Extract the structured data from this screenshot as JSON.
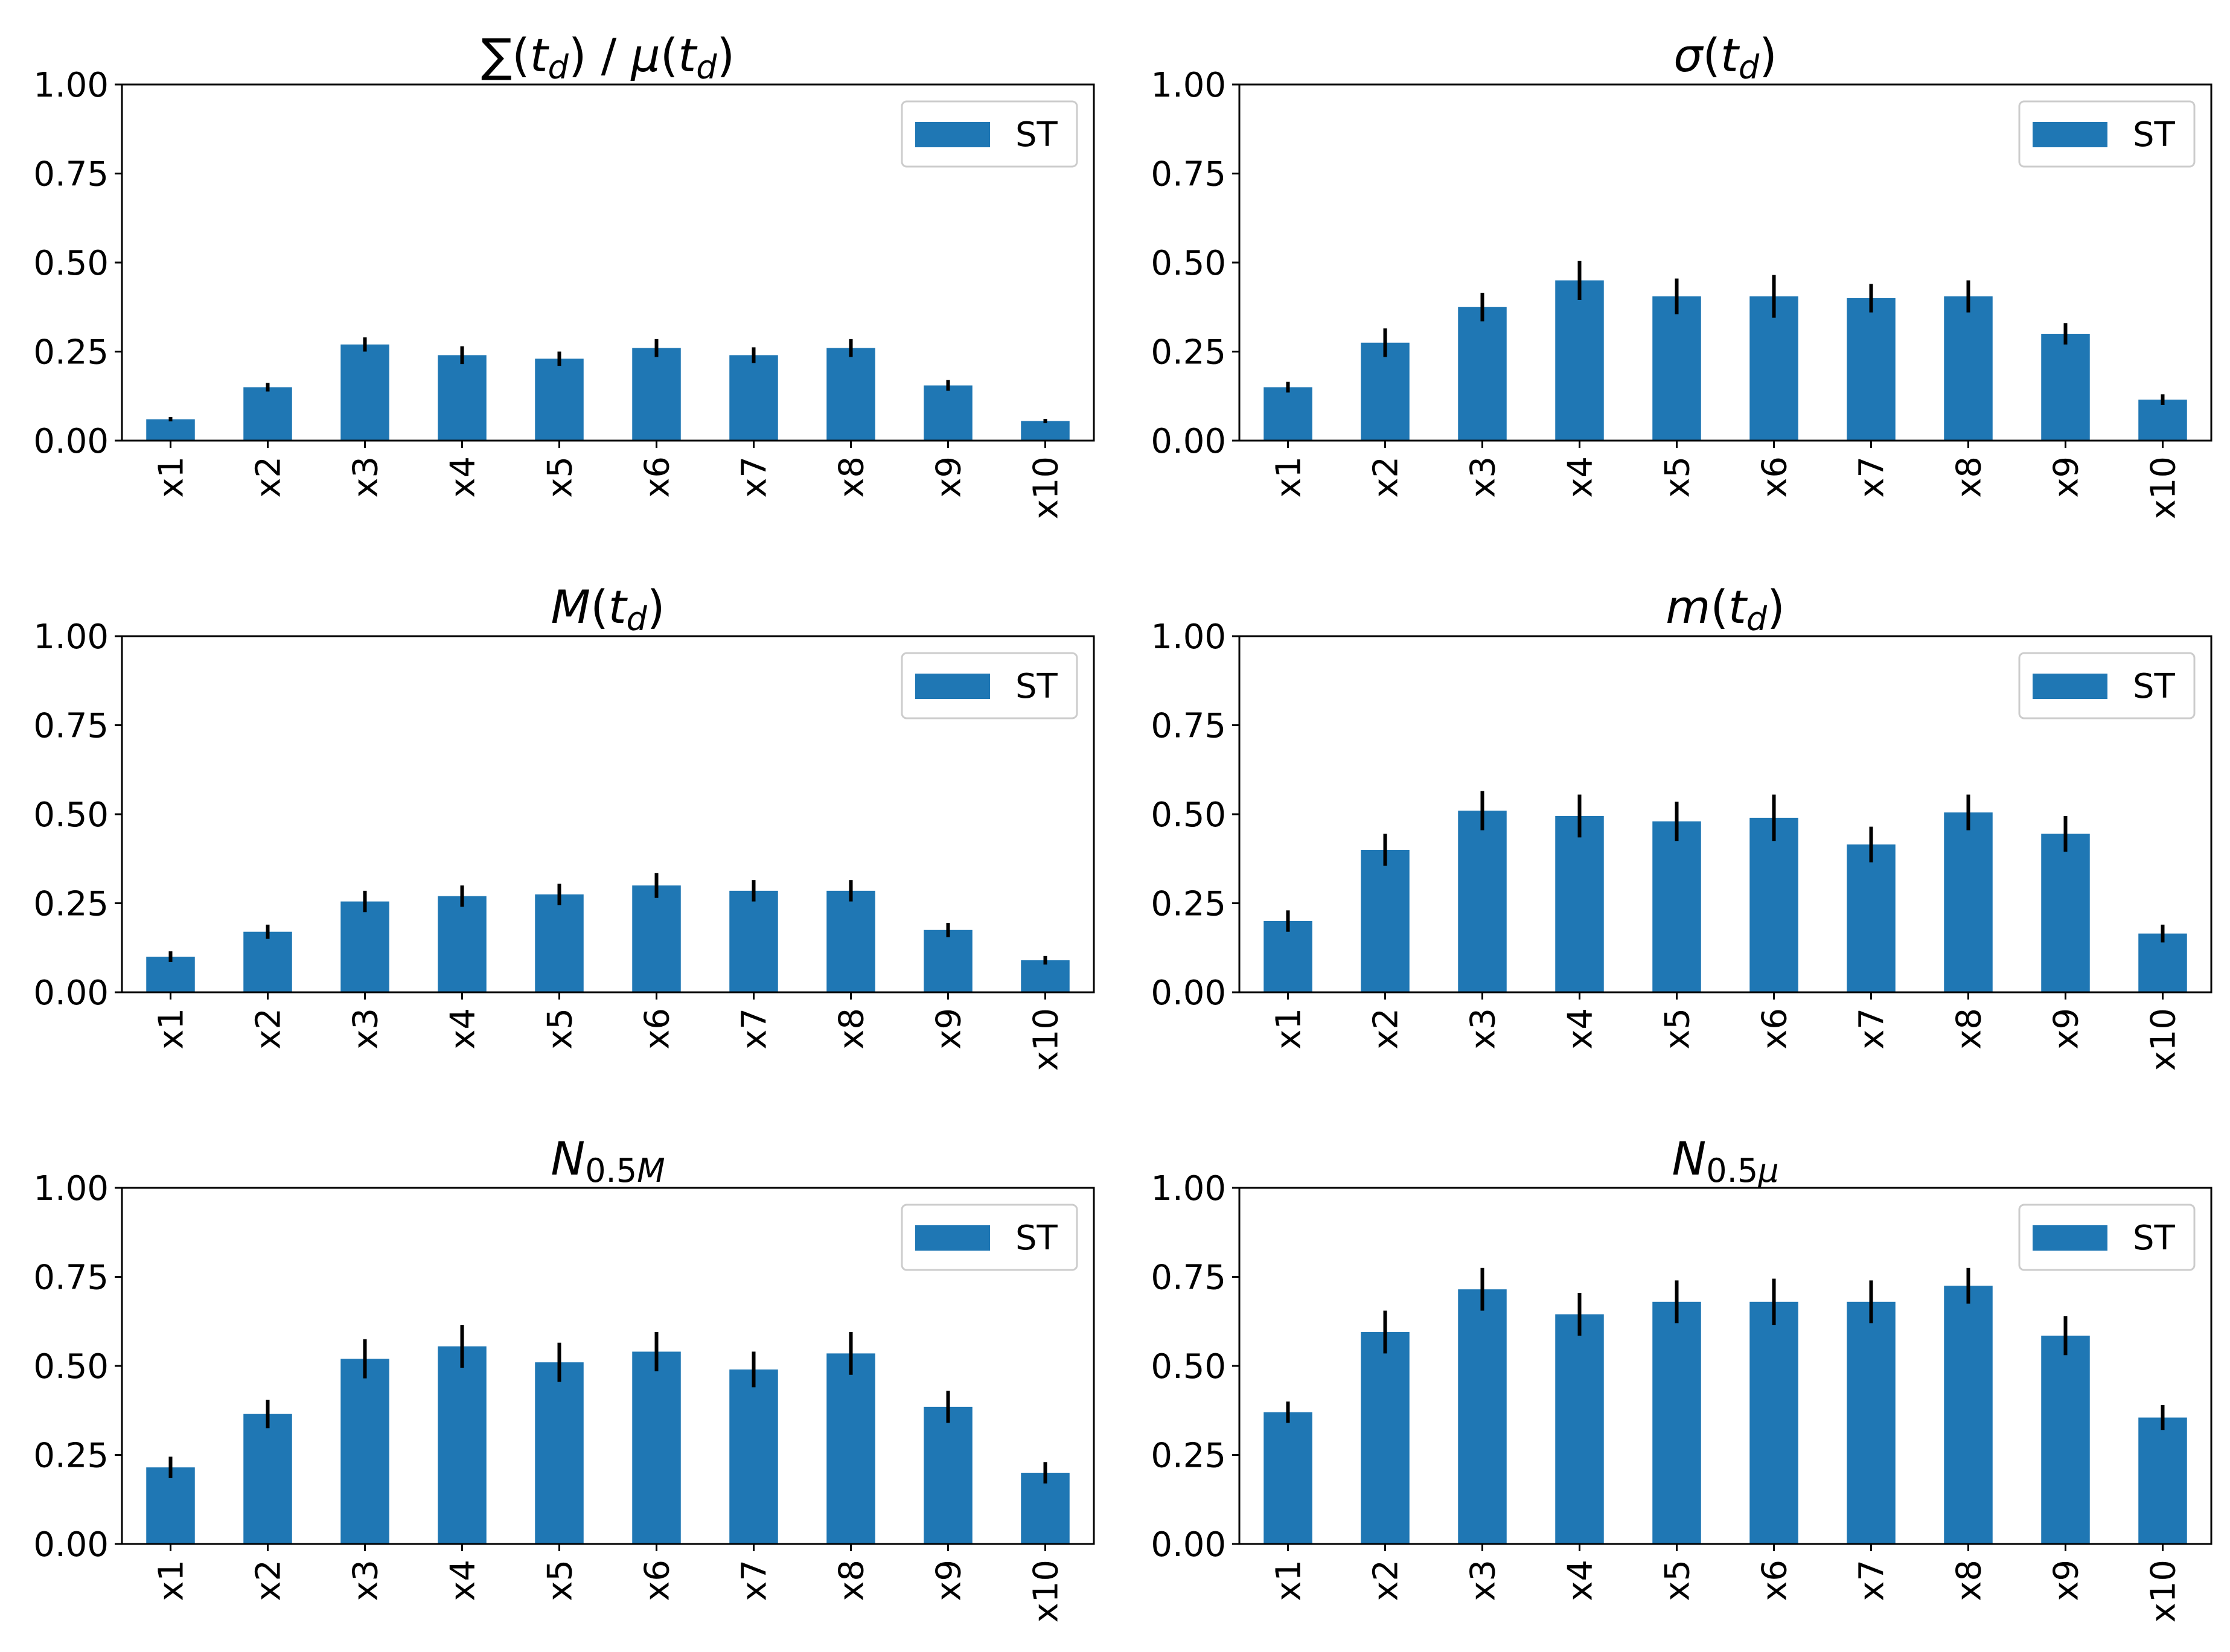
{
  "chart_data": [
    {
      "type": "bar",
      "title": "∑(t_d) / μ(t_d)",
      "title_parts": [
        {
          "t": "∑",
          "it": false
        },
        {
          "t": "(",
          "it": false
        },
        {
          "t": "t",
          "it": true
        },
        {
          "t": "d",
          "it": true,
          "sub": true
        },
        {
          "t": ") / ",
          "it": false
        },
        {
          "t": "μ",
          "it": true
        },
        {
          "t": "(",
          "it": false
        },
        {
          "t": "t",
          "it": true
        },
        {
          "t": "d",
          "it": true,
          "sub": true
        },
        {
          "t": ")",
          "it": false
        }
      ],
      "categories": [
        "x1",
        "x2",
        "x3",
        "x4",
        "x5",
        "x6",
        "x7",
        "x8",
        "x9",
        "x10"
      ],
      "series": [
        {
          "name": "ST",
          "values": [
            0.06,
            0.15,
            0.27,
            0.24,
            0.23,
            0.26,
            0.24,
            0.26,
            0.155,
            0.055
          ],
          "errors": [
            0.006,
            0.012,
            0.02,
            0.025,
            0.02,
            0.025,
            0.022,
            0.025,
            0.015,
            0.006
          ]
        }
      ],
      "ylim": [
        0,
        1.0
      ],
      "yticks": [
        "0.00",
        "0.25",
        "0.50",
        "0.75",
        "1.00"
      ],
      "legend": "top-right",
      "color": "#1f77b4"
    },
    {
      "type": "bar",
      "title": "σ(t_d)",
      "title_parts": [
        {
          "t": "σ",
          "it": true
        },
        {
          "t": "(",
          "it": false
        },
        {
          "t": "t",
          "it": true
        },
        {
          "t": "d",
          "it": true,
          "sub": true
        },
        {
          "t": ")",
          "it": false
        }
      ],
      "categories": [
        "x1",
        "x2",
        "x3",
        "x4",
        "x5",
        "x6",
        "x7",
        "x8",
        "x9",
        "x10"
      ],
      "series": [
        {
          "name": "ST",
          "values": [
            0.15,
            0.275,
            0.375,
            0.45,
            0.405,
            0.405,
            0.4,
            0.405,
            0.3,
            0.115
          ],
          "errors": [
            0.015,
            0.04,
            0.04,
            0.055,
            0.05,
            0.06,
            0.04,
            0.045,
            0.03,
            0.015
          ]
        }
      ],
      "ylim": [
        0,
        1.0
      ],
      "yticks": [
        "0.00",
        "0.25",
        "0.50",
        "0.75",
        "1.00"
      ],
      "legend": "top-right",
      "color": "#1f77b4"
    },
    {
      "type": "bar",
      "title": "M(t_d)",
      "title_parts": [
        {
          "t": "M",
          "it": true
        },
        {
          "t": "(",
          "it": false
        },
        {
          "t": "t",
          "it": true
        },
        {
          "t": "d",
          "it": true,
          "sub": true
        },
        {
          "t": ")",
          "it": false
        }
      ],
      "categories": [
        "x1",
        "x2",
        "x3",
        "x4",
        "x5",
        "x6",
        "x7",
        "x8",
        "x9",
        "x10"
      ],
      "series": [
        {
          "name": "ST",
          "values": [
            0.1,
            0.17,
            0.255,
            0.27,
            0.275,
            0.3,
            0.285,
            0.285,
            0.175,
            0.09
          ],
          "errors": [
            0.015,
            0.02,
            0.03,
            0.03,
            0.03,
            0.035,
            0.03,
            0.03,
            0.02,
            0.012
          ]
        }
      ],
      "ylim": [
        0,
        1.0
      ],
      "yticks": [
        "0.00",
        "0.25",
        "0.50",
        "0.75",
        "1.00"
      ],
      "legend": "top-right",
      "color": "#1f77b4"
    },
    {
      "type": "bar",
      "title": "m(t_d)",
      "title_parts": [
        {
          "t": "m",
          "it": true
        },
        {
          "t": "(",
          "it": false
        },
        {
          "t": "t",
          "it": true
        },
        {
          "t": "d",
          "it": true,
          "sub": true
        },
        {
          "t": ")",
          "it": false
        }
      ],
      "categories": [
        "x1",
        "x2",
        "x3",
        "x4",
        "x5",
        "x6",
        "x7",
        "x8",
        "x9",
        "x10"
      ],
      "series": [
        {
          "name": "ST",
          "values": [
            0.2,
            0.4,
            0.51,
            0.495,
            0.48,
            0.49,
            0.415,
            0.505,
            0.445,
            0.165
          ],
          "errors": [
            0.03,
            0.045,
            0.055,
            0.06,
            0.055,
            0.065,
            0.05,
            0.05,
            0.05,
            0.025
          ]
        }
      ],
      "ylim": [
        0,
        1.0
      ],
      "yticks": [
        "0.00",
        "0.25",
        "0.50",
        "0.75",
        "1.00"
      ],
      "legend": "top-right",
      "color": "#1f77b4"
    },
    {
      "type": "bar",
      "title": "N_0.5M",
      "title_parts": [
        {
          "t": "N",
          "it": true
        },
        {
          "t": "0.5",
          "it": false,
          "sub": true
        },
        {
          "t": "M",
          "it": true,
          "sub": true
        }
      ],
      "categories": [
        "x1",
        "x2",
        "x3",
        "x4",
        "x5",
        "x6",
        "x7",
        "x8",
        "x9",
        "x10"
      ],
      "series": [
        {
          "name": "ST",
          "values": [
            0.215,
            0.365,
            0.52,
            0.555,
            0.51,
            0.54,
            0.49,
            0.535,
            0.385,
            0.2
          ],
          "errors": [
            0.03,
            0.04,
            0.055,
            0.06,
            0.055,
            0.055,
            0.05,
            0.06,
            0.045,
            0.03
          ]
        }
      ],
      "ylim": [
        0,
        1.0
      ],
      "yticks": [
        "0.00",
        "0.25",
        "0.50",
        "0.75",
        "1.00"
      ],
      "legend": "top-right",
      "color": "#1f77b4"
    },
    {
      "type": "bar",
      "title": "N_0.5μ",
      "title_parts": [
        {
          "t": "N",
          "it": true
        },
        {
          "t": "0.5",
          "it": false,
          "sub": true
        },
        {
          "t": "μ",
          "it": true,
          "sub": true
        }
      ],
      "categories": [
        "x1",
        "x2",
        "x3",
        "x4",
        "x5",
        "x6",
        "x7",
        "x8",
        "x9",
        "x10"
      ],
      "series": [
        {
          "name": "ST",
          "values": [
            0.37,
            0.595,
            0.715,
            0.645,
            0.68,
            0.68,
            0.68,
            0.725,
            0.585,
            0.355
          ],
          "errors": [
            0.03,
            0.06,
            0.06,
            0.06,
            0.06,
            0.065,
            0.06,
            0.05,
            0.055,
            0.035
          ]
        }
      ],
      "ylim": [
        0,
        1.0
      ],
      "yticks": [
        "0.00",
        "0.25",
        "0.50",
        "0.75",
        "1.00"
      ],
      "legend": "top-right",
      "color": "#1f77b4"
    }
  ]
}
